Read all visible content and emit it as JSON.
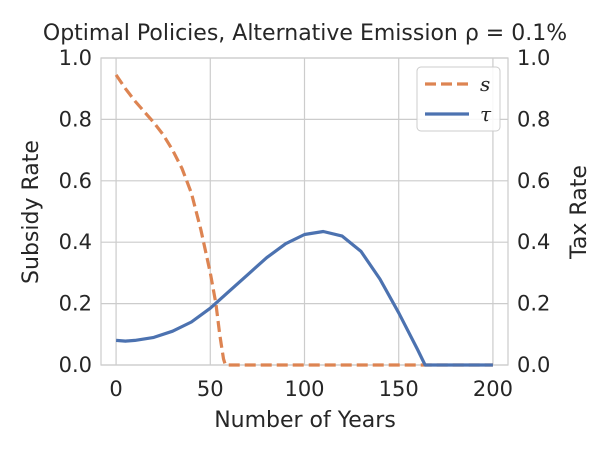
{
  "chart_data": {
    "type": "line",
    "title": "Optimal Policies, Alternative Emission ρ = 0.1%",
    "xlabel": "Number of Years",
    "ylabel_left": "Subsidy Rate",
    "ylabel_right": "Tax Rate",
    "xlim": [
      -8,
      208
    ],
    "ylim": [
      0,
      1
    ],
    "x_ticks": [
      0,
      50,
      100,
      150,
      200
    ],
    "y_ticks": [
      0.0,
      0.2,
      0.4,
      0.6,
      0.8,
      1.0
    ],
    "x_tick_labels": [
      "0",
      "50",
      "100",
      "150",
      "200"
    ],
    "y_tick_labels": [
      "0.0",
      "0.2",
      "0.4",
      "0.6",
      "0.8",
      "1.0"
    ],
    "grid": true,
    "legend_position": "top-right",
    "series": [
      {
        "name": "s",
        "axis": "left",
        "style": "dashed",
        "color": "#dd8452",
        "x": [
          0,
          5,
          10,
          15,
          20,
          25,
          30,
          35,
          40,
          45,
          50,
          53,
          55,
          57,
          58,
          60,
          80,
          100,
          120,
          140,
          160,
          180,
          200
        ],
        "y": [
          0.945,
          0.9,
          0.86,
          0.825,
          0.79,
          0.75,
          0.7,
          0.64,
          0.56,
          0.44,
          0.3,
          0.2,
          0.1,
          0.02,
          0.0,
          0.0,
          0.0,
          0.0,
          0.0,
          0.0,
          0.0,
          0.0,
          0.0
        ]
      },
      {
        "name": "τ",
        "axis": "right",
        "style": "solid",
        "color": "#4c72b0",
        "x": [
          0,
          5,
          10,
          20,
          30,
          40,
          50,
          60,
          70,
          80,
          90,
          100,
          110,
          120,
          130,
          140,
          150,
          160,
          164,
          170,
          180,
          190,
          200
        ],
        "y": [
          0.08,
          0.078,
          0.08,
          0.09,
          0.11,
          0.14,
          0.185,
          0.24,
          0.295,
          0.35,
          0.395,
          0.425,
          0.435,
          0.42,
          0.37,
          0.28,
          0.17,
          0.05,
          0.0,
          0.0,
          0.0,
          0.0,
          0.0
        ]
      }
    ]
  }
}
